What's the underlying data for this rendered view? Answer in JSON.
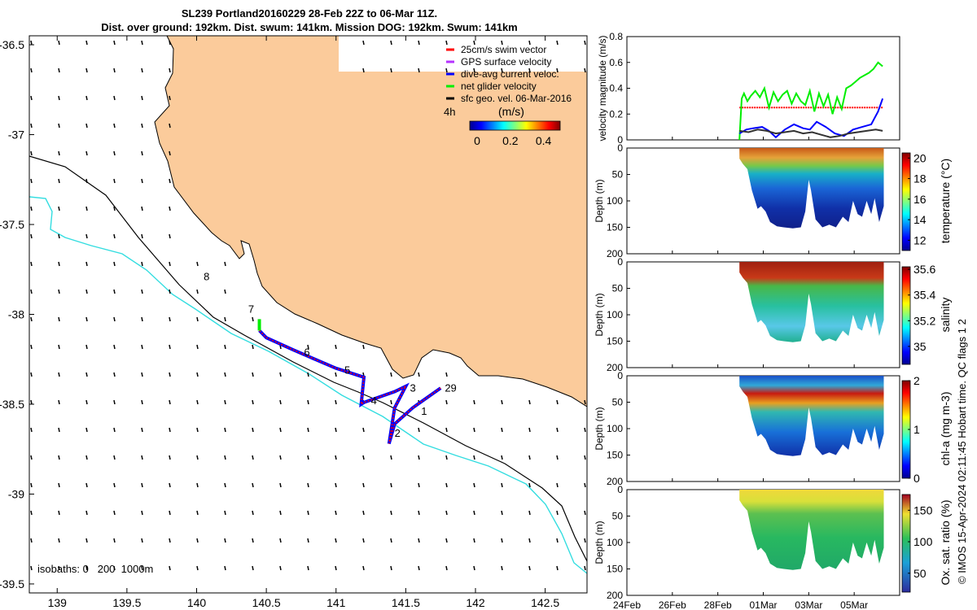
{
  "title": "SL239 Portland20160229 28-Feb 22Z to 06-Mar 11Z.",
  "subtitle": "Dist. over ground: 192km. Dist. swum: 141km. Mission DOG: 192km. Swum: 141km",
  "copyright": "© IMOS 15-Apr-2024 02:11:45 Hobart time. QC flags 1 2",
  "colors": {
    "land": "#fbcb9b",
    "coast": "#000000",
    "isobath1000": "#33dde0",
    "swim": "#ff0000",
    "gps": "#b633ff",
    "current": "#0000ff",
    "net": "#00ee00",
    "geo": "#000000"
  },
  "map": {
    "lon_ticks": [
      "139",
      "139.5",
      "140",
      "140.5",
      "141",
      "141.5",
      "142",
      "142.5"
    ],
    "lat_ticks": [
      "-36.5",
      "-37",
      "-37.5",
      "-38",
      "-38.5",
      "-39",
      "-39.5"
    ],
    "isobaths_label": "isobaths: 0   200  1000m",
    "day_labels": [
      {
        "text": "8",
        "lon": 140.05,
        "lat": -37.81
      },
      {
        "text": "7",
        "lon": 140.37,
        "lat": -37.99
      },
      {
        "text": "6",
        "lon": 140.77,
        "lat": -38.23
      },
      {
        "text": "5",
        "lon": 141.06,
        "lat": -38.33
      },
      {
        "text": "4",
        "lon": 141.25,
        "lat": -38.5
      },
      {
        "text": "3",
        "lon": 141.53,
        "lat": -38.43
      },
      {
        "text": "2",
        "lon": 141.42,
        "lat": -38.68
      },
      {
        "text": "1",
        "lon": 141.61,
        "lat": -38.56
      },
      {
        "text": "29",
        "lon": 141.78,
        "lat": -38.43
      }
    ],
    "glider_track": [
      [
        141.75,
        -38.41
      ],
      [
        141.55,
        -38.52
      ],
      [
        141.42,
        -38.61
      ],
      [
        141.38,
        -38.72
      ],
      [
        141.42,
        -38.52
      ],
      [
        141.5,
        -38.4
      ],
      [
        141.42,
        -38.43
      ],
      [
        141.2,
        -38.49
      ],
      [
        141.18,
        -38.5
      ],
      [
        141.2,
        -38.35
      ],
      [
        141.0,
        -38.3
      ],
      [
        140.7,
        -38.2
      ],
      [
        140.5,
        -38.13
      ],
      [
        140.45,
        -38.09
      ]
    ]
  },
  "legend": {
    "items": [
      {
        "label": "25cm/s swim vector",
        "color": "#ff0000"
      },
      {
        "label": "GPS surface velocity",
        "color": "#b633ff"
      },
      {
        "label": "dive-avg current veloc.",
        "color": "#0000ff"
      },
      {
        "label": "net glider velocity",
        "color": "#00ee00"
      },
      {
        "label": "sfc geo. vel. 06-Mar-2016",
        "color": "#000000"
      }
    ],
    "interval": "4h",
    "unit": "(m/s)",
    "colorbar_ticks": [
      "0",
      "0.2",
      "0.4"
    ]
  },
  "chart_data": [
    {
      "type": "line",
      "ylabel": "velocity magnitude (m/s)",
      "ylim": [
        0,
        0.8
      ],
      "y_ticks": [
        "0",
        "0.2",
        "0.4",
        "0.6",
        "0.8"
      ],
      "x_ticks": [
        "24Feb",
        "26Feb",
        "28Feb",
        "01Mar",
        "03Mar",
        "05Mar"
      ],
      "series": [
        {
          "color": "#ff0000",
          "x": [
            0.0,
            6.3
          ],
          "y": [
            0.25,
            0.25
          ]
        },
        {
          "color": "#00ee00",
          "x": [
            0.0,
            0.1,
            0.2,
            0.35,
            0.5,
            0.7,
            0.9,
            1.1,
            1.3,
            1.5,
            1.7,
            1.9,
            2.1,
            2.3,
            2.5,
            2.7,
            2.9,
            3.1,
            3.3,
            3.5,
            3.7,
            3.9,
            4.1,
            4.3,
            4.5,
            4.7,
            4.9,
            5.1,
            5.3,
            5.5,
            5.7,
            5.9,
            6.1,
            6.3
          ],
          "y": [
            0.0,
            0.32,
            0.36,
            0.3,
            0.34,
            0.38,
            0.33,
            0.4,
            0.25,
            0.37,
            0.3,
            0.35,
            0.38,
            0.28,
            0.36,
            0.3,
            0.27,
            0.38,
            0.22,
            0.36,
            0.26,
            0.35,
            0.2,
            0.33,
            0.24,
            0.4,
            0.42,
            0.45,
            0.48,
            0.5,
            0.52,
            0.55,
            0.6,
            0.57
          ]
        },
        {
          "color": "#0000ff",
          "x": [
            0.0,
            0.3,
            0.6,
            1.0,
            1.3,
            1.6,
            2.0,
            2.4,
            2.8,
            3.1,
            3.4,
            3.8,
            4.2,
            4.6,
            5.0,
            5.4,
            5.8,
            6.1,
            6.3
          ],
          "y": [
            0.05,
            0.08,
            0.09,
            0.1,
            0.07,
            0.02,
            0.08,
            0.12,
            0.09,
            0.08,
            0.14,
            0.1,
            0.05,
            0.03,
            0.08,
            0.1,
            0.12,
            0.22,
            0.32
          ]
        },
        {
          "color": "#333333",
          "x": [
            0.0,
            0.4,
            0.8,
            1.2,
            1.6,
            2.0,
            2.4,
            2.8,
            3.2,
            3.6,
            4.0,
            4.4,
            4.8,
            5.2,
            5.6,
            6.0,
            6.3
          ],
          "y": [
            0.07,
            0.06,
            0.08,
            0.07,
            0.05,
            0.06,
            0.07,
            0.05,
            0.06,
            0.04,
            0.02,
            0.03,
            0.05,
            0.06,
            0.07,
            0.08,
            0.07
          ]
        }
      ]
    },
    {
      "type": "heatmap",
      "ylabel": "Depth (m)",
      "colorbar_label": "temperature (°C)",
      "colorbar_ticks": [
        "20",
        "18",
        "16",
        "14",
        "12"
      ],
      "y_ticks": [
        "0",
        "50",
        "100",
        "150",
        "200"
      ]
    },
    {
      "type": "heatmap",
      "ylabel": "Depth (m)",
      "colorbar_label": "salinity",
      "colorbar_ticks": [
        "35.6",
        "35.4",
        "35.2",
        "35"
      ],
      "y_ticks": [
        "0",
        "50",
        "100",
        "150",
        "200"
      ]
    },
    {
      "type": "heatmap",
      "ylabel": "Depth (m)",
      "colorbar_label": "chl-a (mg m-3)",
      "colorbar_ticks": [
        "2",
        "1",
        "0"
      ],
      "y_ticks": [
        "0",
        "50",
        "100",
        "150",
        "200"
      ]
    },
    {
      "type": "heatmap",
      "ylabel": "Depth (m)",
      "colorbar_label": "Ox. sat. ratio (%)",
      "colorbar_ticks": [
        "150",
        "100",
        "50"
      ],
      "y_ticks": [
        "0",
        "50",
        "100",
        "150",
        "200"
      ],
      "x_ticks": [
        "24Feb",
        "26Feb",
        "28Feb",
        "01Mar",
        "03Mar",
        "05Mar"
      ]
    }
  ]
}
